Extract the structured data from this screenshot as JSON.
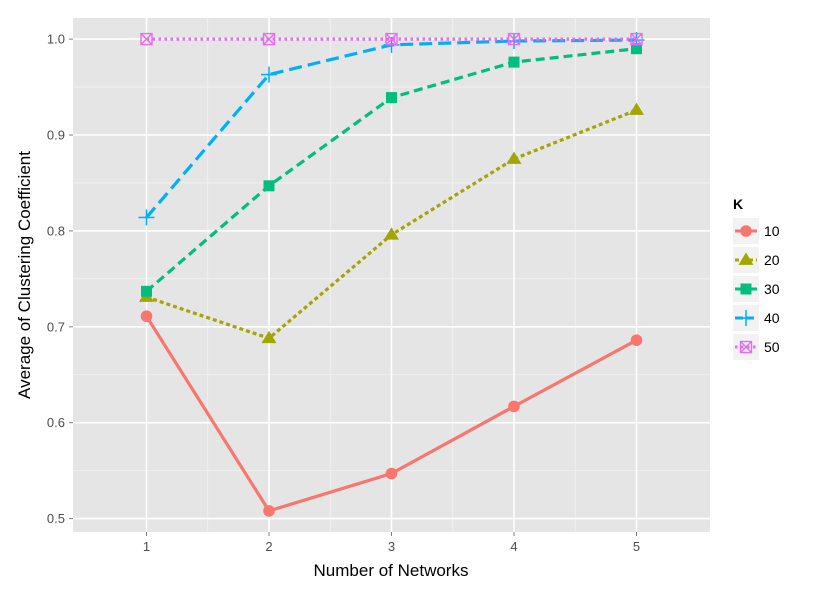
{
  "chart_data": {
    "type": "line",
    "xlabel": "Number of Networks",
    "ylabel": "Average of Clustering Coefficient",
    "x": [
      1,
      2,
      3,
      4,
      5
    ],
    "x_ticks": [
      "1",
      "2",
      "3",
      "4",
      "5"
    ],
    "y_ticks": [
      "0.5",
      "0.6",
      "0.7",
      "0.8",
      "0.9",
      "1.0"
    ],
    "xlim": [
      0.4,
      5.6
    ],
    "ylim": [
      0.486,
      1.022
    ],
    "grid": true,
    "background": "#e5e5e5",
    "legend": {
      "title": "K",
      "placement": "right"
    },
    "series": [
      {
        "name": "10",
        "values": [
          0.711,
          0.508,
          0.547,
          0.617,
          0.686
        ],
        "color": "#f8766d",
        "marker": "circle",
        "dash": "solid"
      },
      {
        "name": "20",
        "values": [
          0.731,
          0.688,
          0.796,
          0.875,
          0.926
        ],
        "color": "#a3a500",
        "marker": "triangle",
        "dash": "dotted-short"
      },
      {
        "name": "30",
        "values": [
          0.737,
          0.847,
          0.939,
          0.976,
          0.99
        ],
        "color": "#00bf7d",
        "marker": "square",
        "dash": "dashed"
      },
      {
        "name": "40",
        "values": [
          0.814,
          0.963,
          0.994,
          0.998,
          0.999
        ],
        "color": "#00b0f6",
        "marker": "plus",
        "dash": "long-dash"
      },
      {
        "name": "50",
        "values": [
          1.0,
          1.0,
          1.0,
          1.0,
          1.0
        ],
        "color": "#e76bf3",
        "marker": "square-cross",
        "dash": "dotted"
      }
    ]
  }
}
